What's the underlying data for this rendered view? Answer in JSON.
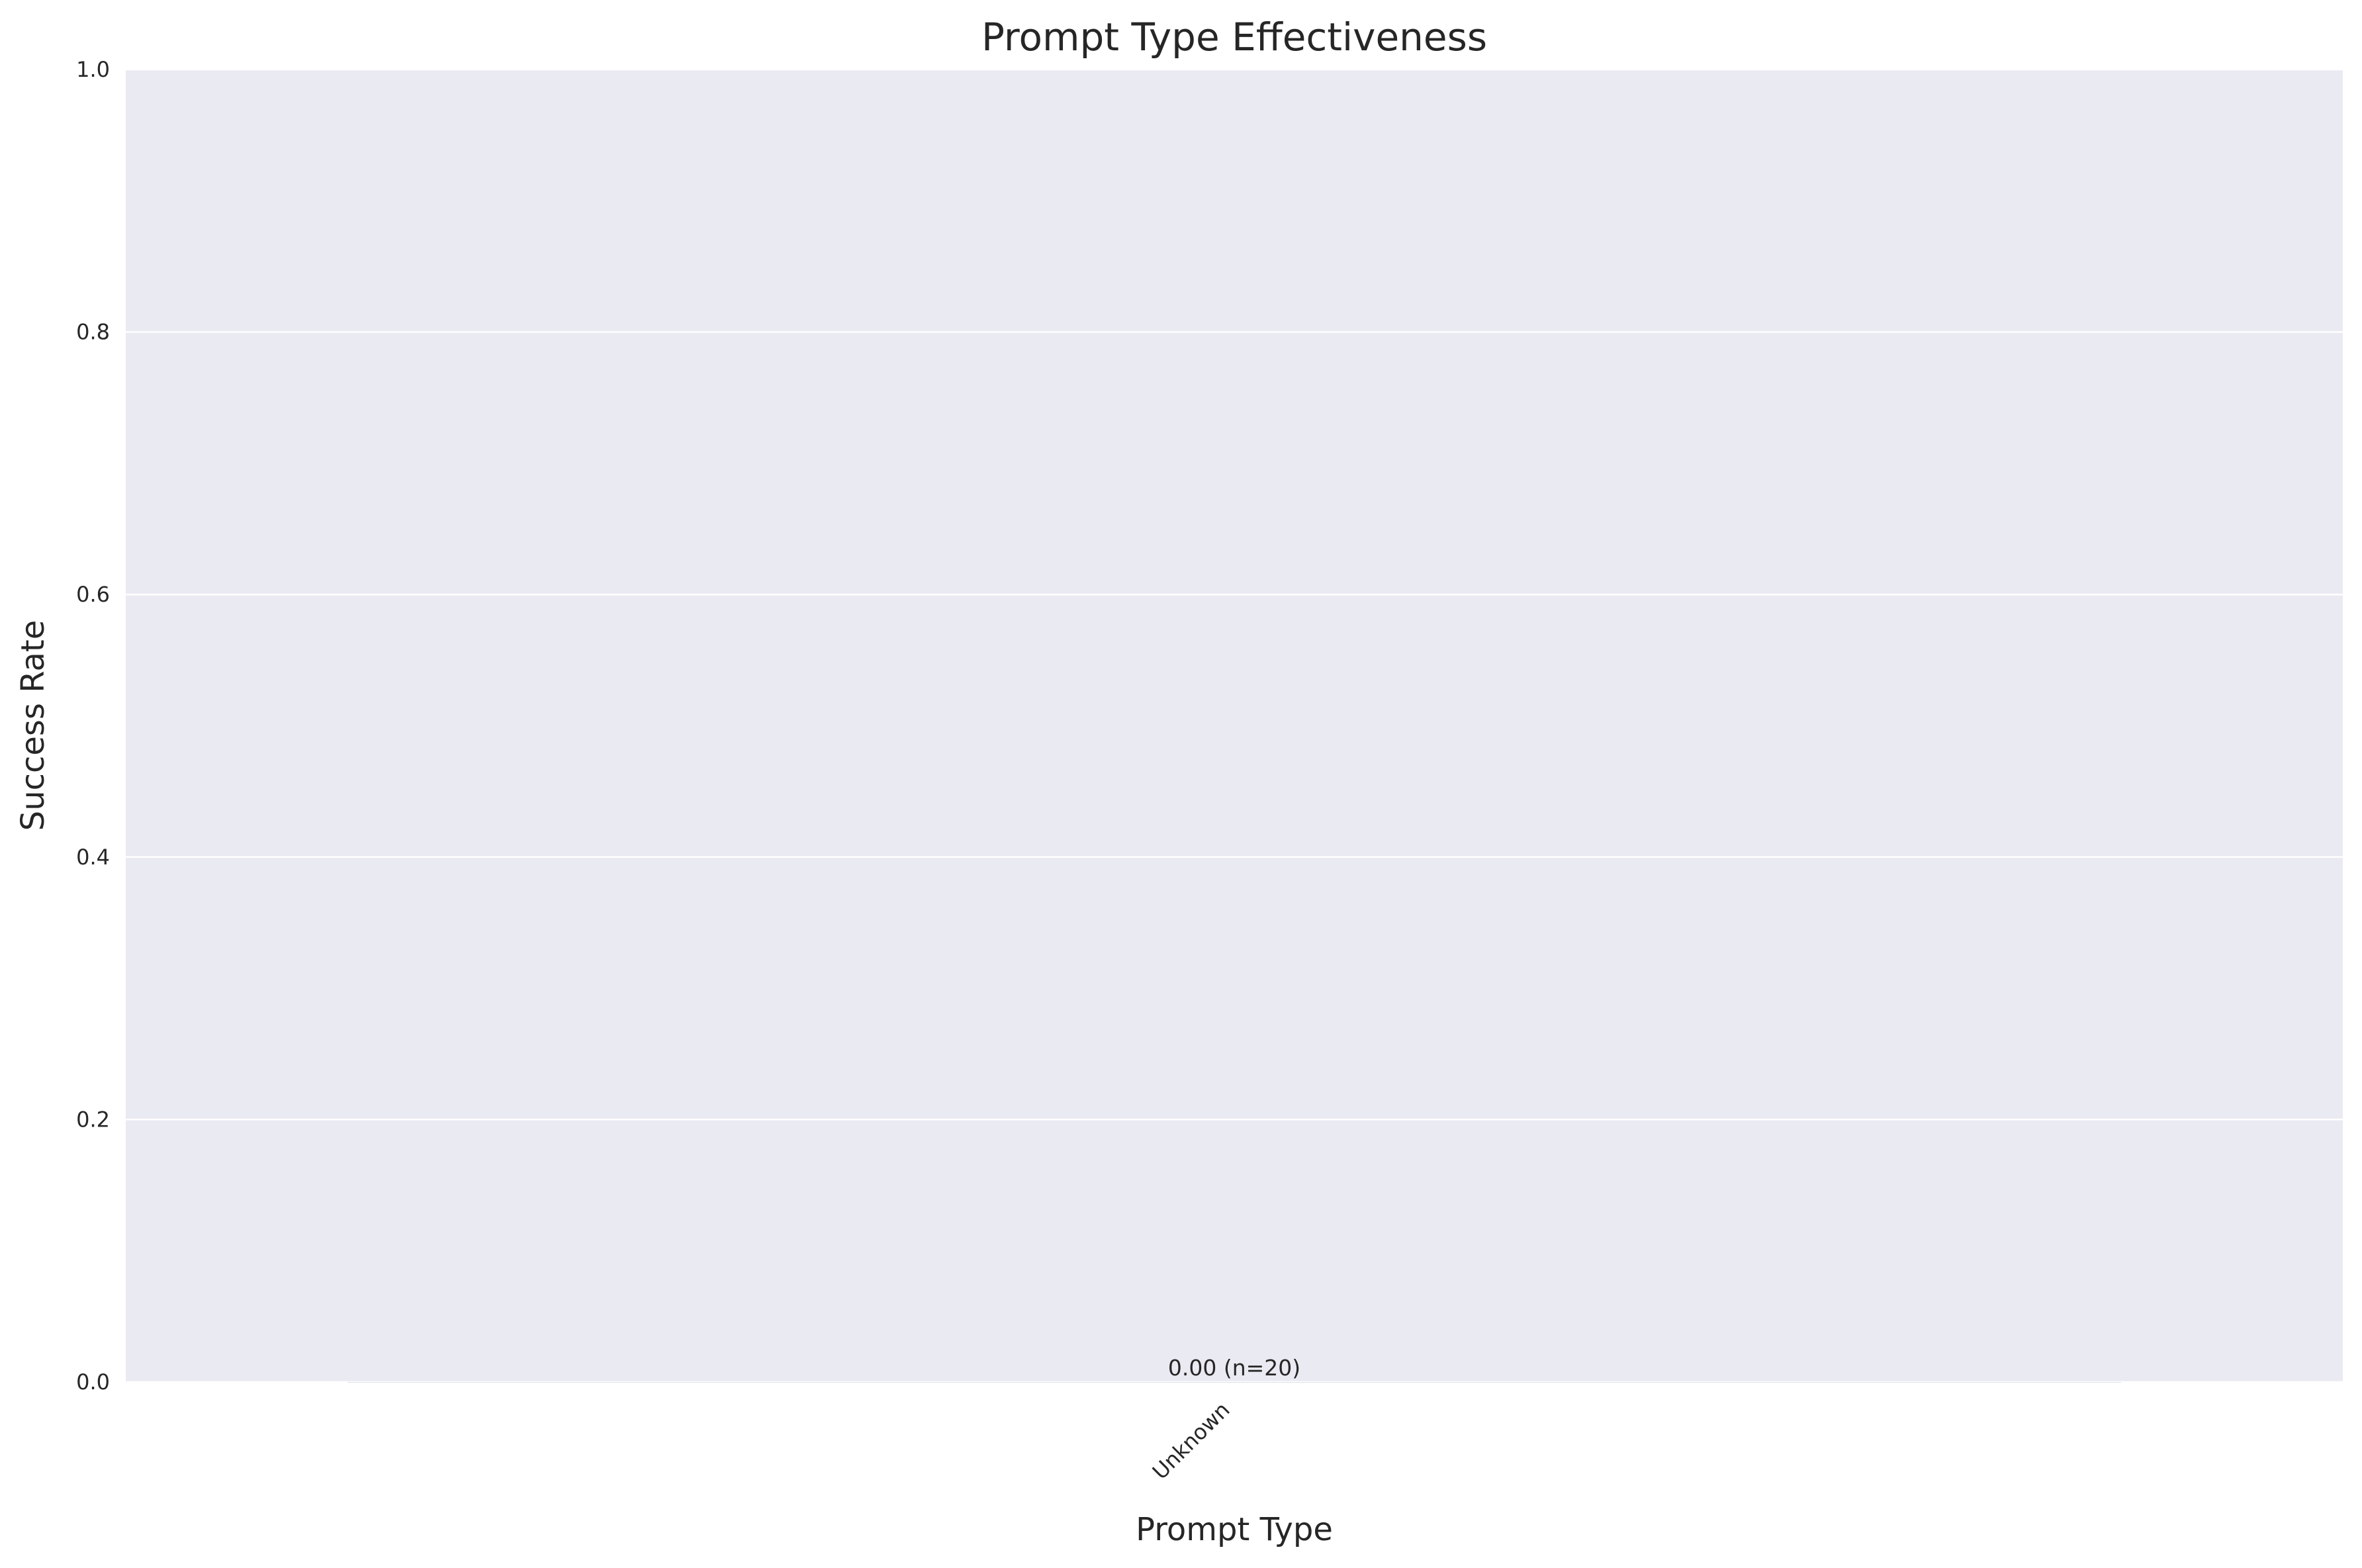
{
  "chart_data": {
    "type": "bar",
    "title": "Prompt Type Effectiveness",
    "xlabel": "Prompt Type",
    "ylabel": "Success Rate",
    "categories": [
      "Unknown"
    ],
    "values": [
      0.0
    ],
    "data_labels": [
      "0.00 (n=20)"
    ],
    "ylim": [
      0,
      1.0
    ],
    "yticks": [
      "0.0",
      "0.2",
      "0.4",
      "0.6",
      "0.8",
      "1.0"
    ],
    "ytick_values": [
      0.0,
      0.2,
      0.4,
      0.6,
      0.8,
      1.0
    ],
    "grid": true,
    "plot_background": "#eaeaf2",
    "grid_color": "#ffffff"
  }
}
